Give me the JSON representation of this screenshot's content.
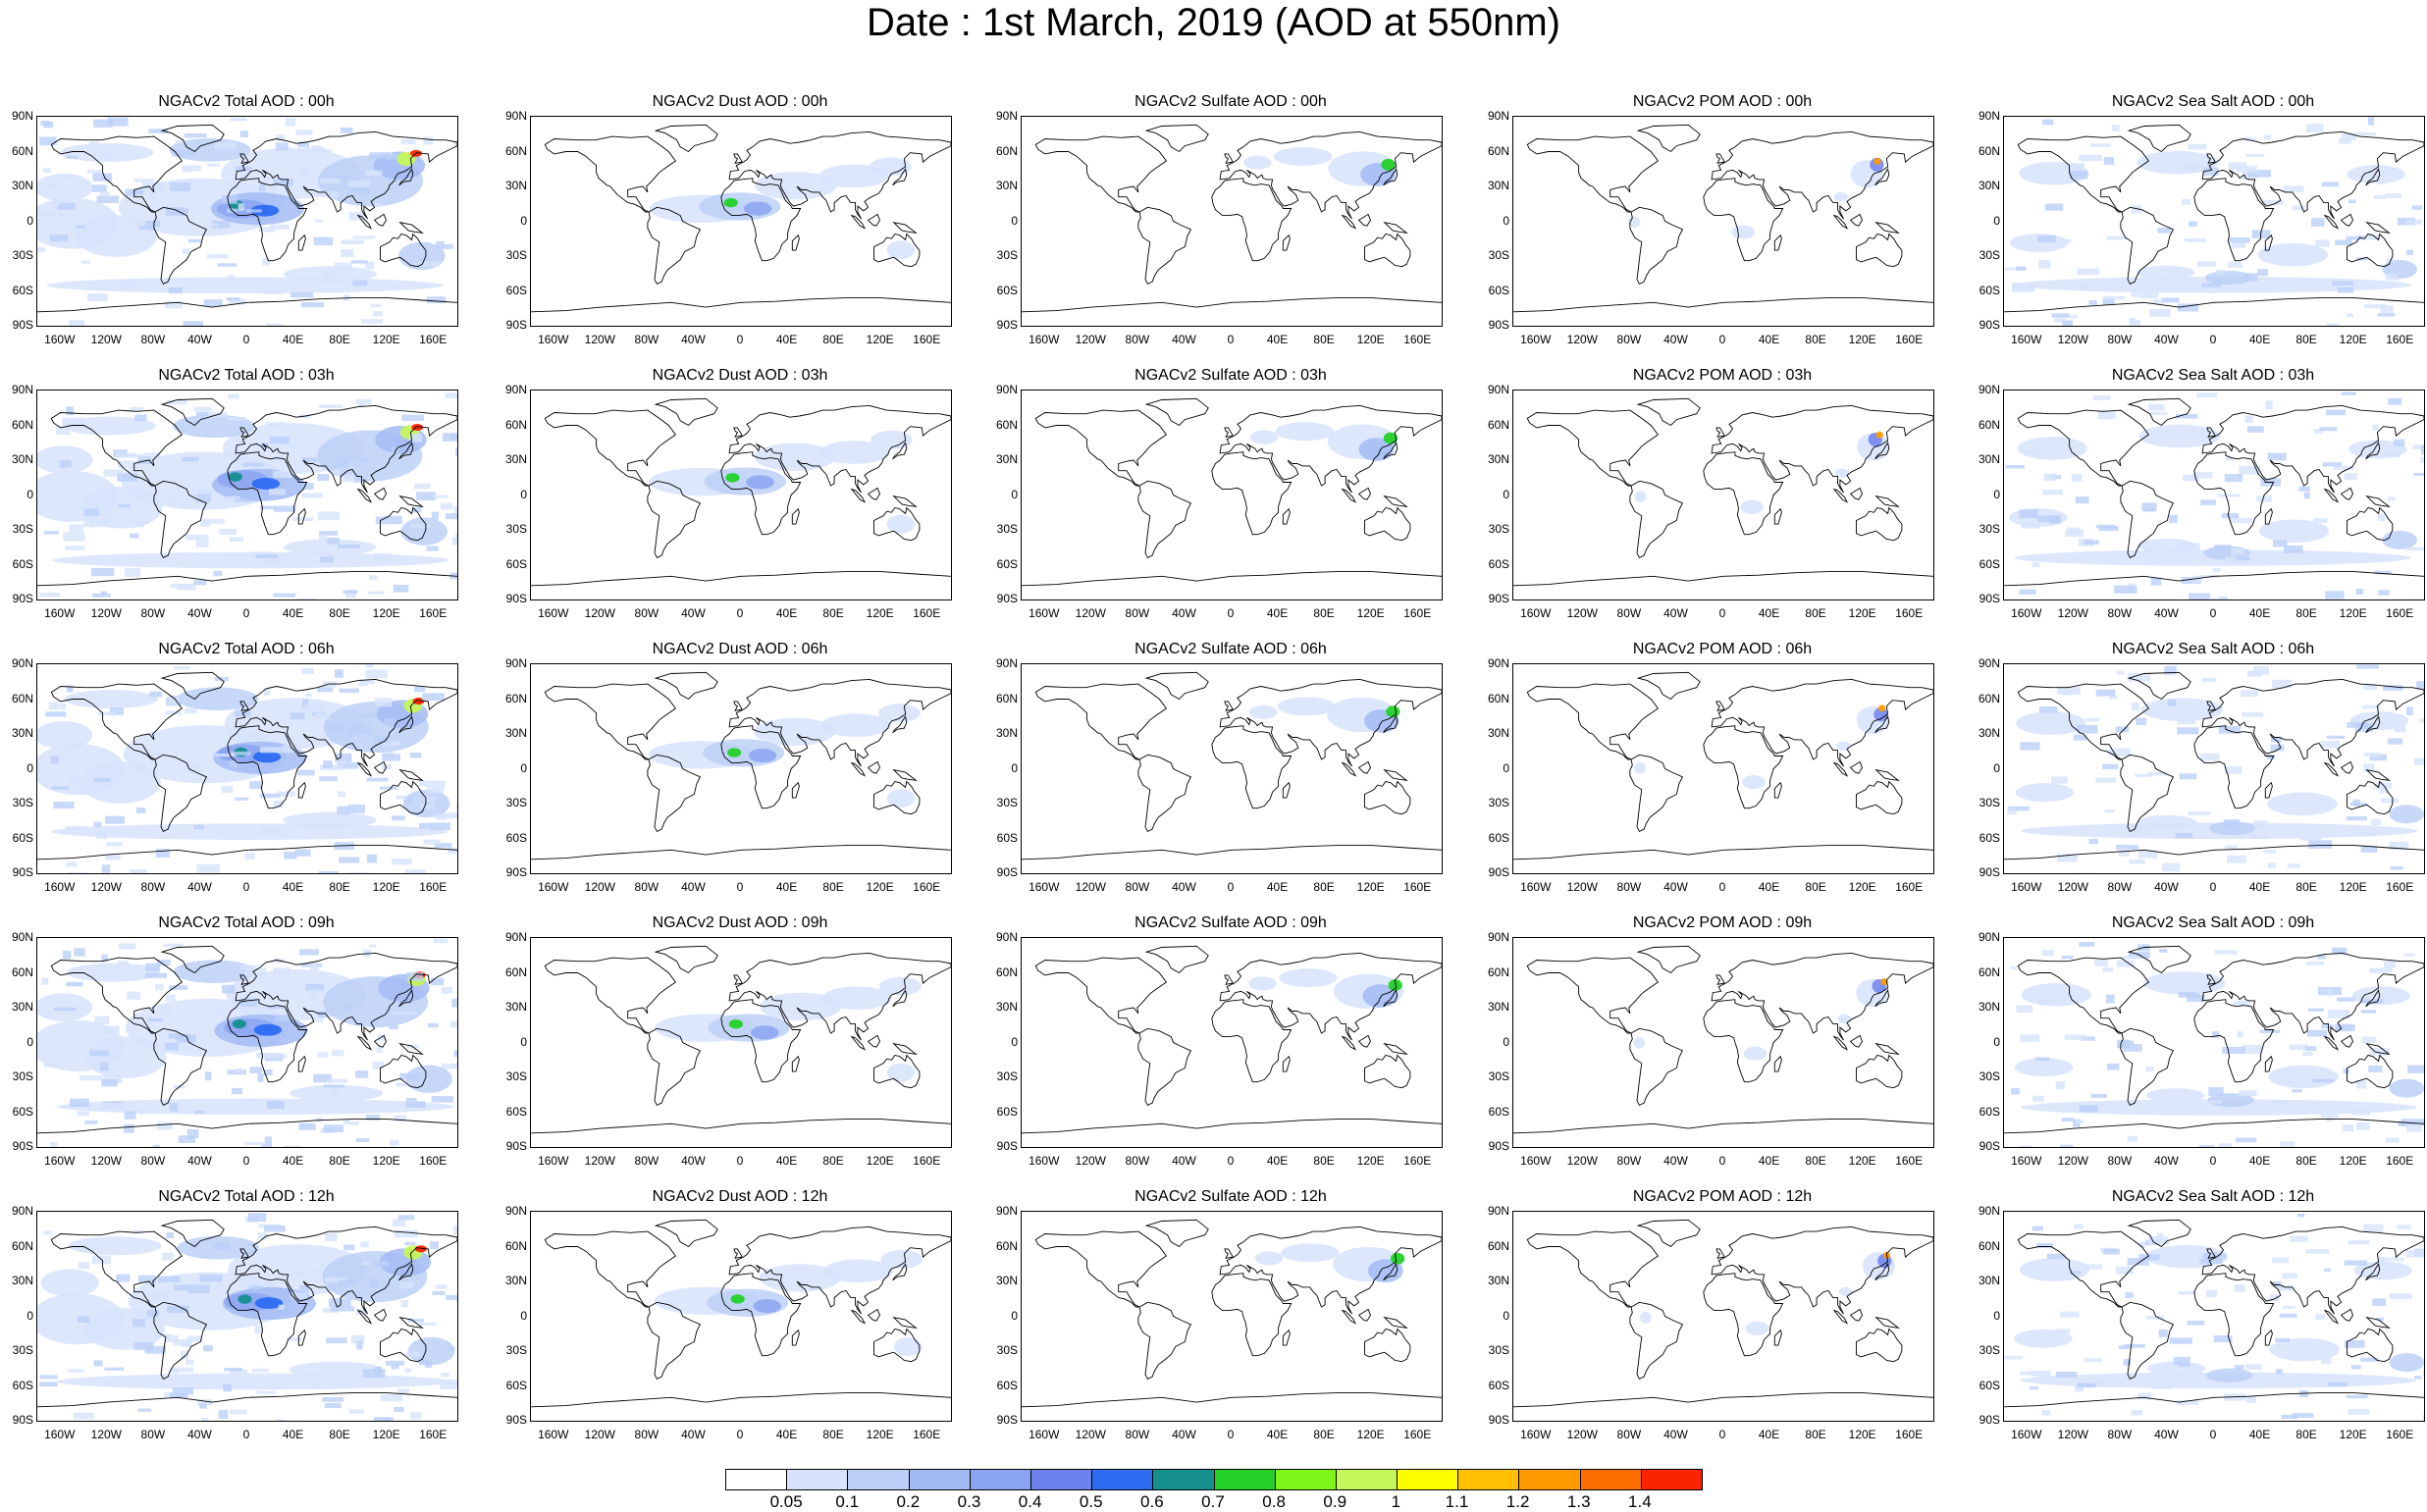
{
  "title": "Date : 1st March, 2019 (AOD at 550nm)",
  "columns": [
    "total",
    "dust",
    "sulfate",
    "pom",
    "seasalt"
  ],
  "panel_titles": [
    [
      "NGACv2 Total AOD : 00h",
      "NGACv2 Dust AOD : 00h",
      "NGACv2 Sulfate AOD : 00h",
      "NGACv2 POM AOD : 00h",
      "NGACv2 Sea Salt AOD : 00h"
    ],
    [
      "NGACv2 Total AOD : 03h",
      "NGACv2 Dust AOD : 03h",
      "NGACv2 Sulfate AOD : 03h",
      "NGACv2 POM AOD : 03h",
      "NGACv2 Sea Salt AOD : 03h"
    ],
    [
      "NGACv2 Total AOD : 06h",
      "NGACv2 Dust AOD : 06h",
      "NGACv2 Sulfate AOD : 06h",
      "NGACv2 POM AOD : 06h",
      "NGACv2 Sea Salt AOD : 06h"
    ],
    [
      "NGACv2 Total AOD : 09h",
      "NGACv2 Dust AOD : 09h",
      "NGACv2 Sulfate AOD : 09h",
      "NGACv2 POM AOD : 09h",
      "NGACv2 Sea Salt  AOD : 09h"
    ],
    [
      "NGACv2 Total AOD : 12h",
      "NGACv2 Dust AOD : 12h",
      "NGACv2 Sulfate AOD : 12h",
      "NGACv2 POM  AOD : 12h",
      "NGACv2 Sea Salt AOD : 12h"
    ]
  ],
  "lat_labels": [
    "90N",
    "60N",
    "30N",
    "0",
    "30S",
    "60S",
    "90S"
  ],
  "lat_values": [
    90,
    60,
    30,
    0,
    -30,
    -60,
    -90
  ],
  "lon_labels": [
    "160W",
    "120W",
    "80W",
    "40W",
    "0",
    "40E",
    "80E",
    "120E",
    "160E"
  ],
  "lon_values": [
    -160,
    -120,
    -80,
    -40,
    0,
    40,
    80,
    120,
    160
  ],
  "colorbar": {
    "labels": [
      "0.05",
      "0.1",
      "0.2",
      "0.3",
      "0.4",
      "0.5",
      "0.6",
      "0.7",
      "0.8",
      "0.9",
      "1",
      "1.1",
      "1.2",
      "1.3",
      "1.4"
    ],
    "colors": [
      "#ffffff",
      "#d7e3fb",
      "#bcd0f7",
      "#a3bbf4",
      "#8ba4f1",
      "#6e82ee",
      "#2e6cf2",
      "#168f8f",
      "#23d127",
      "#7df71a",
      "#c5f75c",
      "#fffe00",
      "#fec000",
      "#fe9b00",
      "#fe6d00",
      "#fb2300"
    ]
  },
  "colors": {
    "land_outline": "#000000",
    "aerosol_light": "#d7e3fb",
    "aerosol_mid": "#a3bbf4",
    "aerosol_strong": "#6e82ee",
    "hotspot_high": "#fb2300"
  }
}
